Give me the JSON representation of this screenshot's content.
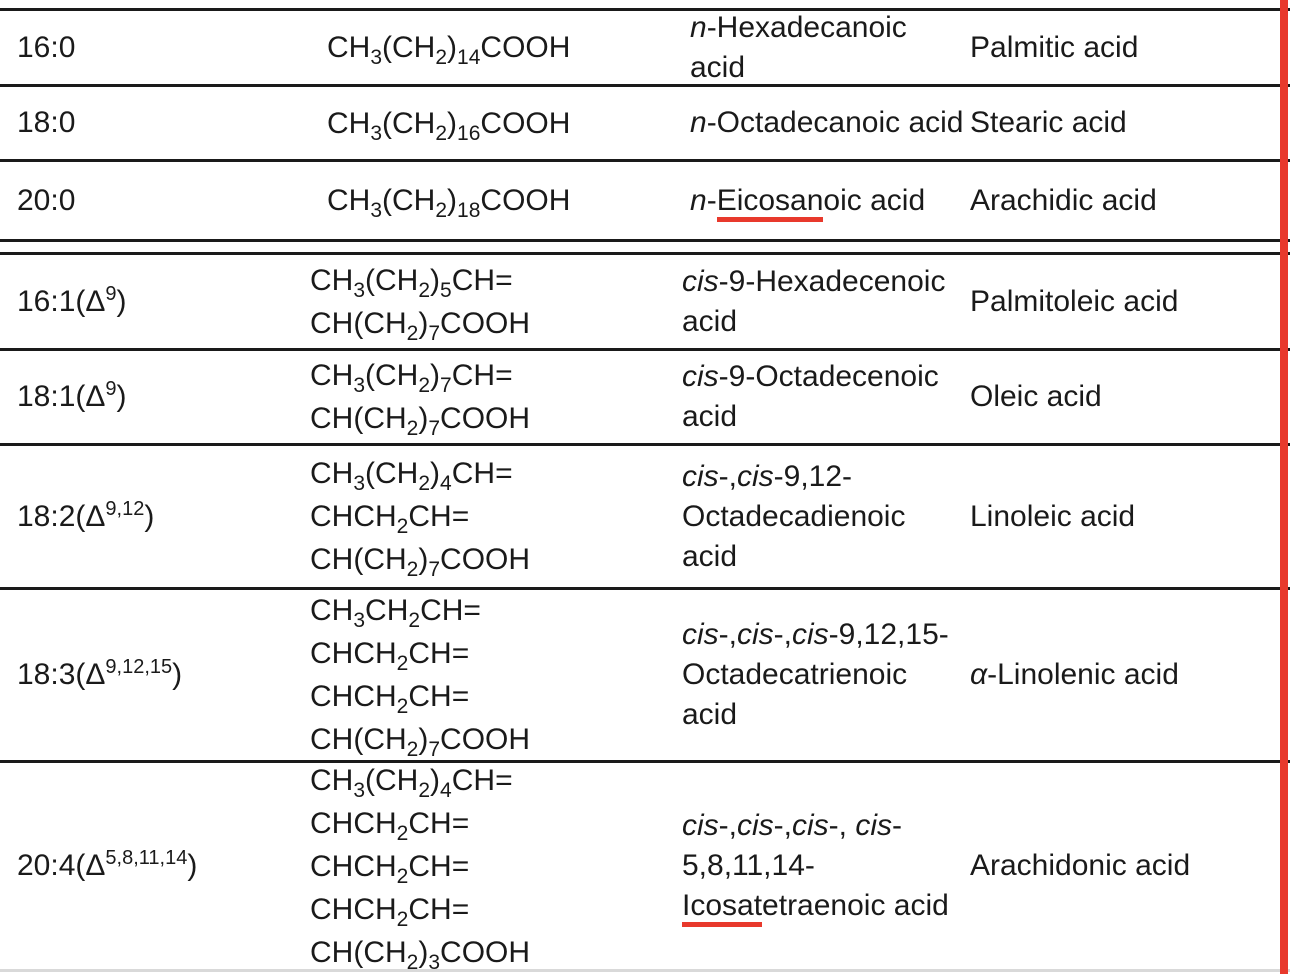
{
  "colors": {
    "accent_red": "#e8392c",
    "table_line": "#1a1a1a",
    "bottom_faint_line": "#d9d9d9",
    "text": "#1a1a1a",
    "background": "#ffffff"
  },
  "annotations": {
    "red_vertical_margin_line": "full-height red line near right edge",
    "red_underline_1": "under 'Eicosan' in n-Eicosanoic acid",
    "red_underline_2": "under 'Icosat' in Icosatetraenoic acid"
  },
  "table": {
    "column_semantics": [
      "carbon-skeleton",
      "structure",
      "systematic-name",
      "common-name"
    ],
    "separator_note": "double horizontal rule between saturated (first 3 rows) and unsaturated rows",
    "rows": [
      {
        "group": "saturated",
        "skeleton": "16:0",
        "structure": "CH~3~(CH~2~)~14~COOH",
        "systematic": "*n*-Hexadecanoic acid",
        "common": "Palmitic acid"
      },
      {
        "group": "saturated",
        "skeleton": "18:0",
        "structure": "CH~3~(CH~2~)~16~COOH",
        "systematic": "*n*-Octadecanoic acid",
        "common": "Stearic acid"
      },
      {
        "group": "saturated",
        "skeleton": "20:0",
        "structure": "CH~3~(CH~2~)~18~COOH",
        "systematic": "*n*-#Eicosan#oic acid",
        "common": "Arachidic acid"
      },
      {
        "group": "unsaturated",
        "skeleton": "16:1(Δ^9^)",
        "structure": "CH~3~(CH~2~)~5~CH=\nCH(CH~2~)~7~COOH",
        "systematic": "*cis*-9-Hexadecenoic\nacid",
        "common": "Palmitoleic acid"
      },
      {
        "group": "unsaturated",
        "skeleton": "18:1(Δ^9^)",
        "structure": "CH~3~(CH~2~)~7~CH=\nCH(CH~2~)~7~COOH",
        "systematic": "*cis*-9-Octadecenoic\nacid",
        "common": "Oleic acid"
      },
      {
        "group": "unsaturated",
        "skeleton": "18:2(Δ^9,12^)",
        "structure": "CH~3~(CH~2~)~4~CH=\nCHCH~2~CH=\nCH(CH~2~)~7~COOH",
        "systematic": "*cis*-,*cis*-9,12-\nOctadecadienoic acid",
        "common": "Linoleic acid"
      },
      {
        "group": "unsaturated",
        "skeleton": "18:3(Δ^9,12,15^)",
        "structure": "CH~3~CH~2~CH=\nCHCH~2~CH=\nCHCH~2~CH=\nCH(CH~2~)~7~COOH",
        "systematic": "*cis*-,*cis*-,*cis*-9,12,15-\nOctadecatrienoic\nacid",
        "common": "*α*-Linolenic acid"
      },
      {
        "group": "unsaturated",
        "skeleton": "20:4(Δ^5,8,11,14^)",
        "structure": "CH~3~(CH~2~)~4~CH=\nCHCH~2~CH=\nCHCH~2~CH=\nCHCH~2~CH=\nCH(CH~2~)~3~COOH",
        "systematic": "*cis*-,*cis*-,*cis*-, *cis*-\n5,8,11,14-\n#Icosat#etraenoic acid",
        "common": "Arachidonic acid"
      }
    ]
  }
}
